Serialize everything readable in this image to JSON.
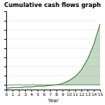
{
  "chart_data": {
    "type": "area",
    "title": "Cumulative cash flows graph",
    "xlabel": "Year",
    "x": [
      0,
      1,
      2,
      3,
      4,
      5,
      6,
      7,
      8,
      9,
      10,
      11,
      12,
      13,
      14,
      15
    ],
    "values": [
      -0.05,
      -0.04,
      -0.04,
      -0.03,
      -0.03,
      -0.02,
      -0.02,
      -0.01,
      0.0,
      0.02,
      0.06,
      0.12,
      0.22,
      0.38,
      0.6,
      0.9
    ],
    "color": "#3a7d3a",
    "xlim": [
      0,
      15
    ],
    "xticks": [
      0,
      1,
      2,
      3,
      4,
      5,
      6,
      7,
      8,
      9,
      10,
      11,
      12,
      13,
      14,
      15
    ],
    "ylim": [
      -0.07,
      1.08675
    ],
    "yticks": [
      0,
      0.135,
      0.27,
      0.405,
      0.54,
      0.675,
      0.81,
      0.945
    ],
    "grid": true,
    "tick_labels": "x"
  }
}
